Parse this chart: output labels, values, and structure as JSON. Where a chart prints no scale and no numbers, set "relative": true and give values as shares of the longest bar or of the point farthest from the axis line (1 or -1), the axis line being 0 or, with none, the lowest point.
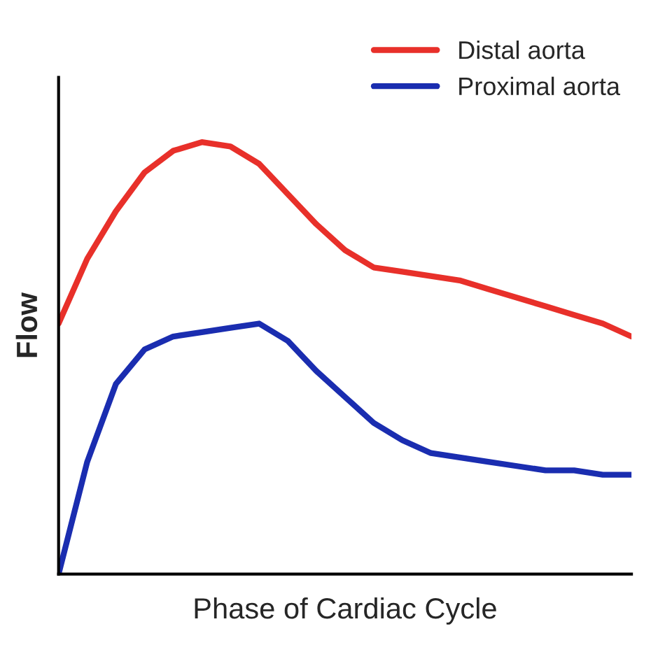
{
  "chart_data": {
    "type": "line",
    "xlabel": "Phase of Cardiac Cycle",
    "ylabel": "Flow",
    "relative": true,
    "legend": "top right",
    "marker": "none",
    "line_style": "solid",
    "categories": [
      null,
      null,
      null,
      null,
      null,
      null,
      null,
      null,
      null,
      null,
      null,
      null,
      null,
      null,
      null,
      null,
      null,
      null,
      null,
      null,
      null
    ],
    "series": [
      {
        "name": "Distal aorta",
        "color": "#e8302a",
        "values": [
          0.58,
          0.73,
          0.84,
          0.93,
          0.98,
          1.0,
          0.99,
          0.95,
          0.88,
          0.81,
          0.75,
          0.71,
          0.7,
          0.69,
          0.68,
          0.66,
          0.64,
          0.62,
          0.6,
          0.58,
          0.55
        ]
      },
      {
        "name": "Proximal aorta",
        "color": "#1a2db0",
        "values": [
          0.0,
          0.26,
          0.44,
          0.52,
          0.55,
          0.56,
          0.57,
          0.58,
          0.54,
          0.47,
          0.41,
          0.35,
          0.31,
          0.28,
          0.27,
          0.26,
          0.25,
          0.24,
          0.24,
          0.23,
          0.23
        ]
      }
    ]
  }
}
